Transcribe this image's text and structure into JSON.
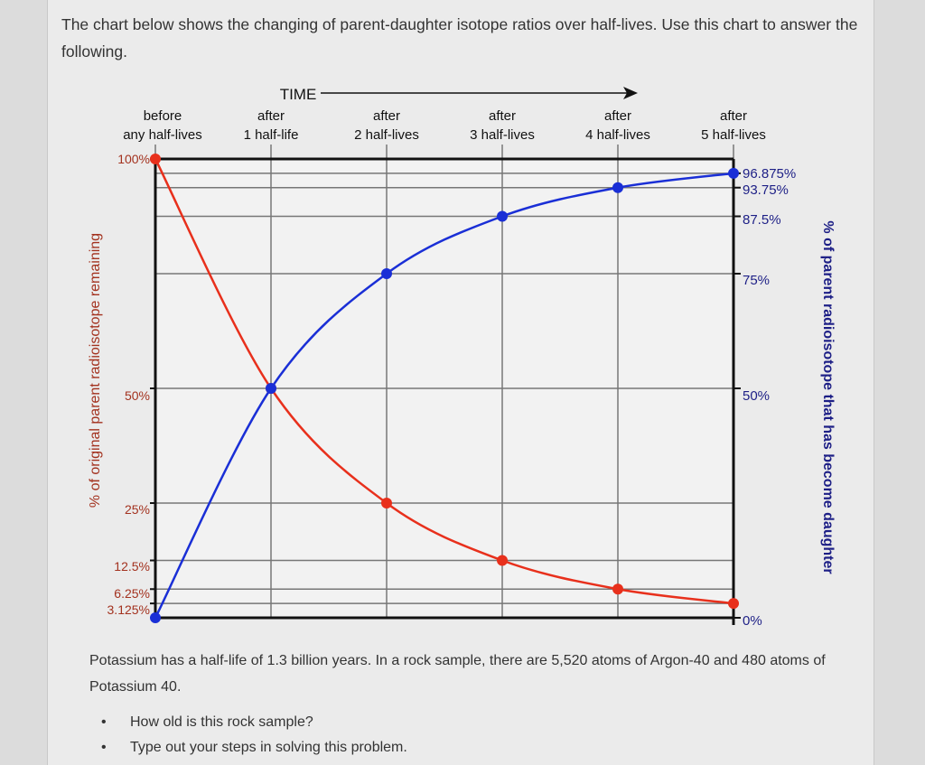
{
  "intro": "The chart below shows the changing of parent-daughter isotope ratios over half-lives. Use this chart to answer the following.",
  "question": "Potassium has a half-life of 1.3 billion years. In a rock sample, there are 5,520 atoms of Argon-40 and 480 atoms of Potassium 40.",
  "bullets": [
    "How old is this rock sample?",
    "Type out your steps in solving this problem."
  ],
  "chart_data": {
    "type": "line",
    "time_label": "TIME",
    "categories": [
      [
        "before",
        "any half-lives"
      ],
      [
        "after",
        "1 half-life"
      ],
      [
        "after",
        "2 half-lives"
      ],
      [
        "after",
        "3 half-lives"
      ],
      [
        "after",
        "4 half-lives"
      ],
      [
        "after",
        "5 half-lives"
      ]
    ],
    "ylabel_left": "% of original parent radioisotope remaining",
    "ylabel_right": "% of parent radioisotope that has become daughter",
    "left_ticks": [
      "100%",
      "50%",
      "25%",
      "12.5%",
      "6.25%",
      "3.125%"
    ],
    "left_tick_values": [
      100,
      50,
      25,
      12.5,
      6.25,
      3.125
    ],
    "right_ticks": [
      "96.875%",
      "93.75%",
      "87.5%",
      "75%",
      "50%",
      "0%"
    ],
    "right_tick_values": [
      96.875,
      93.75,
      87.5,
      75,
      50,
      0
    ],
    "ylim": [
      0,
      100
    ],
    "grid": true,
    "series": [
      {
        "values": [
          100,
          50,
          25,
          12.5,
          6.25,
          3.125
        ],
        "color": "#e8301c",
        "axis": "left"
      },
      {
        "values": [
          0,
          50,
          75,
          87.5,
          93.75,
          96.875
        ],
        "color": "#1a2fd6",
        "axis": "right"
      }
    ],
    "left_label_color": "#a3321f",
    "right_label_color": "#1d1f86"
  }
}
